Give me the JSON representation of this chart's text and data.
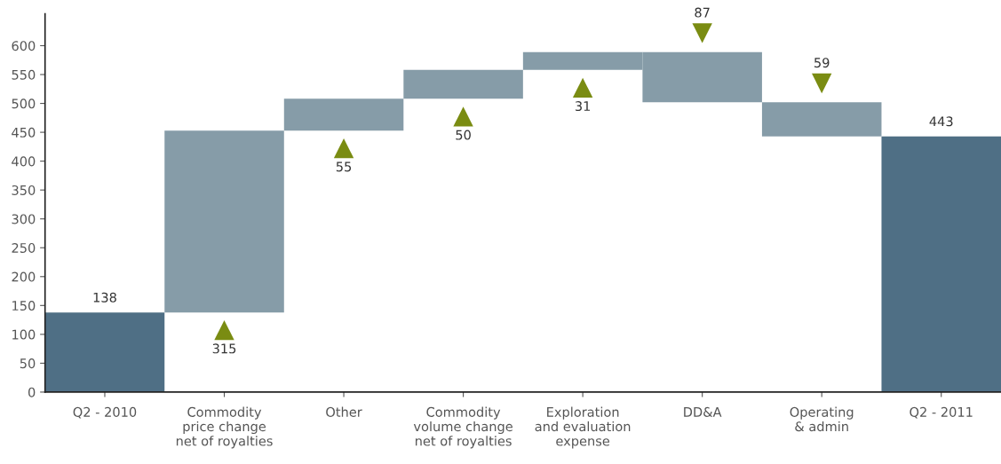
{
  "chart_data": {
    "type": "bar",
    "categories": [
      "Q2 - 2010",
      "Commodity\nprice change\nnet of royalties",
      "Other",
      "Commodity\nvolume change\nnet of royalties",
      "Exploration\nand evaluation\nexpense",
      "DD&A",
      "Operating\n& admin",
      "Q2 - 2011"
    ],
    "values": [
      138,
      315,
      55,
      50,
      31,
      -87,
      -59,
      443
    ],
    "base": [
      0,
      138,
      453,
      508,
      558,
      589,
      502,
      0
    ],
    "colors": [
      "#4f6f85",
      "#869ca8",
      "#869ca8",
      "#869ca8",
      "#869ca8",
      "#869ca8",
      "#869ca8",
      "#4f6f85"
    ],
    "value_labels": [
      "138",
      "315",
      "55",
      "50",
      "31",
      "87",
      "59",
      "443"
    ],
    "ylim": [
      0,
      655
    ],
    "yticks": [
      0,
      50,
      100,
      150,
      200,
      250,
      300,
      350,
      400,
      450,
      500,
      550,
      600
    ],
    "grid": false
  }
}
